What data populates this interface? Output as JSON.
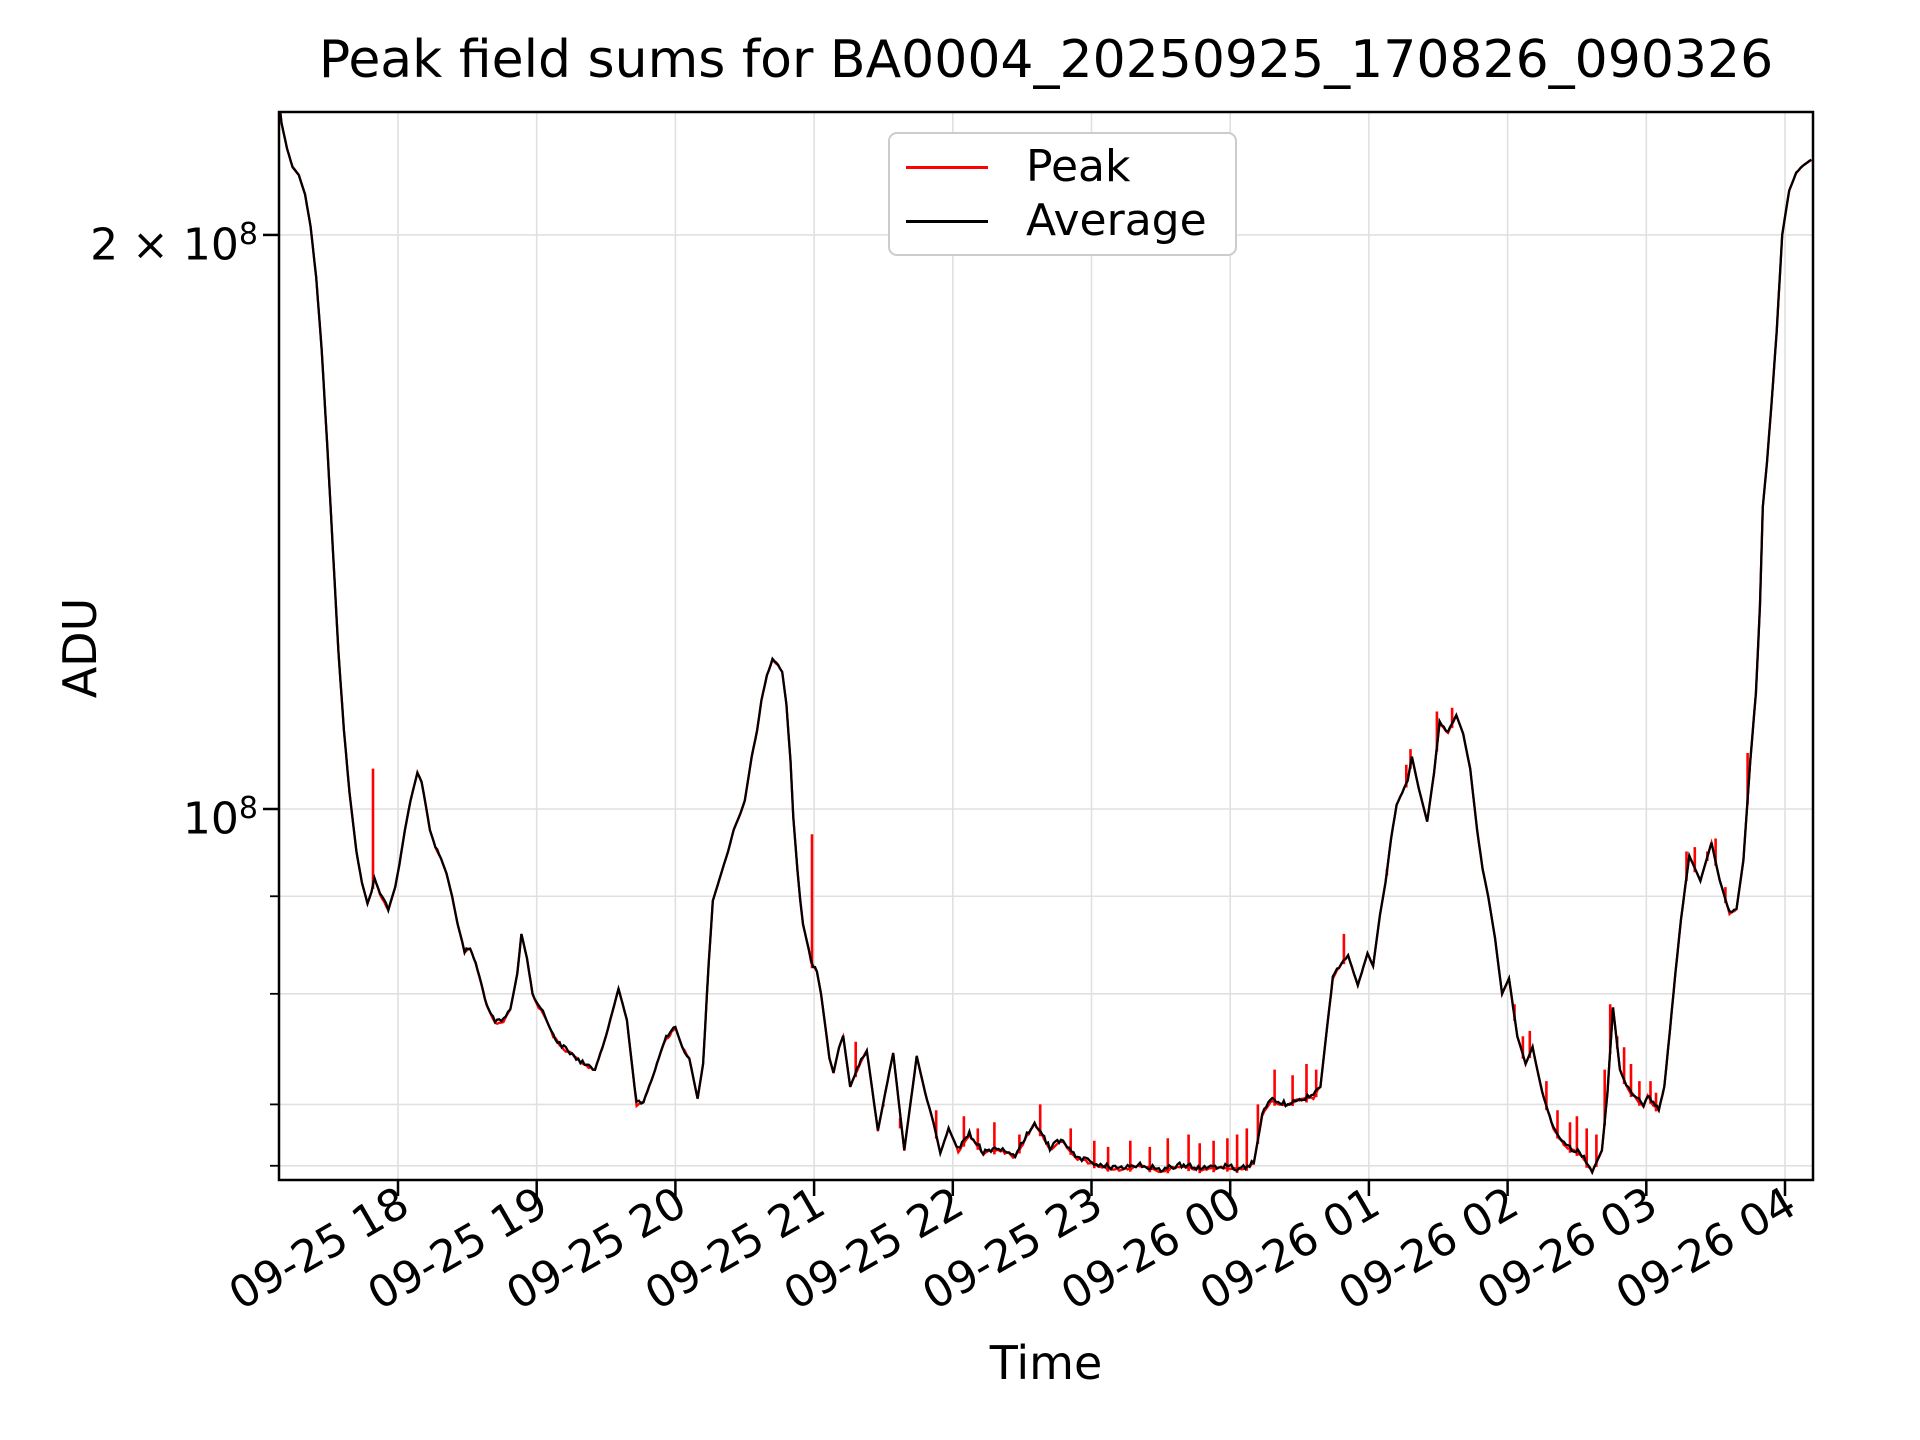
{
  "title": "Peak field sums for BA0004_20250925_170826_090326",
  "axes": {
    "xlabel": "Time",
    "ylabel": "ADU",
    "y_ticks": [
      {
        "mantissa": "2 × 10",
        "exponent": "8",
        "value": 200000000.0
      },
      {
        "mantissa": "10",
        "exponent": "8",
        "value": 100000000.0
      }
    ]
  },
  "legend": {
    "items": [
      {
        "label": "Peak",
        "color": "#ff0000"
      },
      {
        "label": "Average",
        "color": "#000000"
      }
    ]
  },
  "chart_data": {
    "type": "line",
    "title": "Peak field sums for BA0004_20250925_170826_090326",
    "xlabel": "Time",
    "ylabel": "ADU",
    "y_scale": "log",
    "x_unit": "hours after 2025-09-25 17:00",
    "x_range": [
      0.142,
      11.192
    ],
    "y_range": [
      64200000.0,
      233000000.0
    ],
    "grid": true,
    "legend_position": "upper center",
    "x_ticks": [
      {
        "h": 1,
        "label": "09-25 18"
      },
      {
        "h": 2,
        "label": "09-25 19"
      },
      {
        "h": 3,
        "label": "09-25 20"
      },
      {
        "h": 4,
        "label": "09-25 21"
      },
      {
        "h": 5,
        "label": "09-25 22"
      },
      {
        "h": 6,
        "label": "09-25 23"
      },
      {
        "h": 7,
        "label": "09-26 00"
      },
      {
        "h": 8,
        "label": "09-26 01"
      },
      {
        "h": 9,
        "label": "09-26 02"
      },
      {
        "h": 10,
        "label": "09-26 03"
      },
      {
        "h": 11,
        "label": "09-26 04"
      }
    ],
    "y_ticks_major": [
      200000000.0,
      100000000.0
    ],
    "y_ticks_minor": [
      90000000.0,
      80000000.0,
      70000000.0,
      65000000.0
    ],
    "series": [
      {
        "name": "Peak",
        "color": "#ff0000",
        "note": "coincides with Average plus upward spikes",
        "spikes": [
          [
            0.82,
            105000000.0
          ],
          [
            3.985,
            97000000.0
          ],
          [
            4.3,
            75500000.0
          ],
          [
            4.5,
            70000000.0
          ],
          [
            4.62,
            68000000.0
          ],
          [
            4.88,
            69500000.0
          ],
          [
            5.08,
            69000000.0
          ],
          [
            5.18,
            68000000.0
          ],
          [
            5.3,
            68500000.0
          ],
          [
            5.48,
            67500000.0
          ],
          [
            5.63,
            70000000.0
          ],
          [
            5.85,
            68000000.0
          ],
          [
            6.02,
            67000000.0
          ],
          [
            6.12,
            66500000.0
          ],
          [
            6.28,
            67000000.0
          ],
          [
            6.42,
            66500000.0
          ],
          [
            6.55,
            67200000.0
          ],
          [
            6.7,
            67500000.0
          ],
          [
            6.78,
            66800000.0
          ],
          [
            6.88,
            67000000.0
          ],
          [
            6.98,
            67200000.0
          ],
          [
            7.05,
            67500000.0
          ],
          [
            7.12,
            68000000.0
          ],
          [
            7.2,
            70000000.0
          ],
          [
            7.32,
            73000000.0
          ],
          [
            7.45,
            72500000.0
          ],
          [
            7.55,
            73500000.0
          ],
          [
            7.62,
            73000000.0
          ],
          [
            7.82,
            86000000.0
          ],
          [
            8.13,
            93000000.0
          ],
          [
            8.27,
            105500000.0
          ],
          [
            8.3,
            107500000.0
          ],
          [
            8.49,
            112500000.0
          ],
          [
            8.6,
            113000000.0
          ],
          [
            9.05,
            79000000.0
          ],
          [
            9.11,
            76000000.0
          ],
          [
            9.16,
            76500000.0
          ],
          [
            9.28,
            72000000.0
          ],
          [
            9.36,
            69500000.0
          ],
          [
            9.45,
            68500000.0
          ],
          [
            9.5,
            69000000.0
          ],
          [
            9.57,
            68000000.0
          ],
          [
            9.64,
            67500000.0
          ],
          [
            9.7,
            73000000.0
          ],
          [
            9.74,
            79000000.0
          ],
          [
            9.79,
            76000000.0
          ],
          [
            9.84,
            75000000.0
          ],
          [
            9.89,
            73500000.0
          ],
          [
            9.95,
            72000000.0
          ],
          [
            10.03,
            72000000.0
          ],
          [
            10.07,
            71000000.0
          ],
          [
            10.29,
            95000000.0
          ],
          [
            10.35,
            95500000.0
          ],
          [
            10.44,
            95000000.0
          ],
          [
            10.5,
            96500000.0
          ],
          [
            10.57,
            91000000.0
          ],
          [
            10.73,
            107000000.0
          ]
        ]
      },
      {
        "name": "Average",
        "color": "#000000",
        "points": [
          [
            0.142,
            235000000.0
          ],
          [
            0.16,
            229000000.0
          ],
          [
            0.2,
            222000000.0
          ],
          [
            0.24,
            217000000.0
          ],
          [
            0.285,
            215000000.0
          ],
          [
            0.33,
            210000000.0
          ],
          [
            0.37,
            202000000.0
          ],
          [
            0.41,
            190000000.0
          ],
          [
            0.45,
            174000000.0
          ],
          [
            0.49,
            155000000.0
          ],
          [
            0.53,
            137000000.0
          ],
          [
            0.57,
            121000000.0
          ],
          [
            0.61,
            110000000.0
          ],
          [
            0.65,
            102000000.0
          ],
          [
            0.7,
            95000000.0
          ],
          [
            0.74,
            91500000.0
          ],
          [
            0.78,
            89200000.0
          ],
          [
            0.81,
            90500000.0
          ],
          [
            0.83,
            92000000.0
          ],
          [
            0.87,
            90300000.0
          ],
          [
            0.93,
            88500000.0
          ],
          [
            0.98,
            91000000.0
          ],
          [
            1.01,
            93500000.0
          ],
          [
            1.05,
            97500000.0
          ],
          [
            1.09,
            101000000.0
          ],
          [
            1.14,
            104500000.0
          ],
          [
            1.17,
            103300000.0
          ],
          [
            1.2,
            100500000.0
          ],
          [
            1.23,
            97500000.0
          ],
          [
            1.27,
            95500000.0
          ],
          [
            1.31,
            94200000.0
          ],
          [
            1.35,
            92500000.0
          ],
          [
            1.39,
            90000000.0
          ],
          [
            1.43,
            87000000.0
          ],
          [
            1.48,
            84200000.0
          ],
          [
            1.52,
            84500000.0
          ],
          [
            1.56,
            83000000.0
          ],
          [
            1.6,
            81000000.0
          ],
          [
            1.64,
            78800000.0
          ],
          [
            1.7,
            77200000.0
          ],
          [
            1.76,
            77400000.0
          ],
          [
            1.81,
            78500000.0
          ],
          [
            1.86,
            82000000.0
          ],
          [
            1.89,
            86000000.0
          ],
          [
            1.93,
            83500000.0
          ],
          [
            1.97,
            80000000.0
          ],
          [
            2.0,
            79000000.0
          ],
          [
            2.06,
            77800000.0
          ],
          [
            2.12,
            76000000.0
          ],
          [
            2.18,
            75000000.0
          ],
          [
            2.24,
            74500000.0
          ],
          [
            2.33,
            73500000.0
          ],
          [
            2.42,
            73000000.0
          ],
          [
            2.5,
            76000000.0
          ],
          [
            2.59,
            80500000.0
          ],
          [
            2.65,
            77500000.0
          ],
          [
            2.72,
            70000000.0
          ],
          [
            2.77,
            70200000.0
          ],
          [
            2.84,
            72500000.0
          ],
          [
            2.92,
            75500000.0
          ],
          [
            3.0,
            76800000.0
          ],
          [
            3.05,
            75000000.0
          ],
          [
            3.1,
            74000000.0
          ],
          [
            3.16,
            70500000.0
          ],
          [
            3.2,
            73500000.0
          ],
          [
            3.24,
            83000000.0
          ],
          [
            3.27,
            89500000.0
          ],
          [
            3.32,
            92000000.0
          ],
          [
            3.38,
            95000000.0
          ],
          [
            3.42,
            97500000.0
          ],
          [
            3.47,
            99500000.0
          ],
          [
            3.5,
            101000000.0
          ],
          [
            3.55,
            106500000.0
          ],
          [
            3.59,
            110000000.0
          ],
          [
            3.62,
            114000000.0
          ],
          [
            3.66,
            117500000.0
          ],
          [
            3.7,
            119700000.0
          ],
          [
            3.74,
            119000000.0
          ],
          [
            3.77,
            118000000.0
          ],
          [
            3.8,
            113500000.0
          ],
          [
            3.83,
            106000000.0
          ],
          [
            3.85,
            99000000.0
          ],
          [
            3.88,
            92800000.0
          ],
          [
            3.9,
            89600000.0
          ],
          [
            3.92,
            87000000.0
          ],
          [
            3.96,
            84500000.0
          ],
          [
            3.98,
            83000000.0
          ],
          [
            4.02,
            82200000.0
          ],
          [
            4.05,
            80000000.0
          ],
          [
            4.07,
            78000000.0
          ],
          [
            4.09,
            76000000.0
          ],
          [
            4.11,
            74000000.0
          ],
          [
            4.14,
            72700000.0
          ],
          [
            4.18,
            75000000.0
          ],
          [
            4.21,
            76000000.0
          ],
          [
            4.26,
            71500000.0
          ],
          [
            4.31,
            73000000.0
          ],
          [
            4.38,
            74700000.0
          ],
          [
            4.46,
            67800000.0
          ],
          [
            4.57,
            74500000.0
          ],
          [
            4.65,
            66200000.0
          ],
          [
            4.74,
            74200000.0
          ],
          [
            4.8,
            71000000.0
          ],
          [
            4.86,
            68500000.0
          ],
          [
            4.91,
            66000000.0
          ],
          [
            4.97,
            68000000.0
          ],
          [
            5.04,
            66200000.0
          ],
          [
            5.12,
            67500000.0
          ],
          [
            5.22,
            66000000.0
          ],
          [
            5.33,
            66300000.0
          ],
          [
            5.45,
            65700000.0
          ],
          [
            5.59,
            68500000.0
          ],
          [
            5.7,
            66300000.0
          ],
          [
            5.78,
            67000000.0
          ],
          [
            5.9,
            65600000.0
          ],
          [
            6.05,
            65000000.0
          ],
          [
            6.2,
            64700000.0
          ],
          [
            6.35,
            65000000.0
          ],
          [
            6.5,
            64600000.0
          ],
          [
            6.65,
            65000000.0
          ],
          [
            6.8,
            64700000.0
          ],
          [
            6.95,
            64900000.0
          ],
          [
            7.08,
            64700000.0
          ],
          [
            7.17,
            65200000.0
          ],
          [
            7.23,
            69000000.0
          ],
          [
            7.29,
            70300000.0
          ],
          [
            7.4,
            70000000.0
          ],
          [
            7.5,
            70400000.0
          ],
          [
            7.6,
            70600000.0
          ],
          [
            7.65,
            71500000.0
          ],
          [
            7.7,
            77000000.0
          ],
          [
            7.74,
            81500000.0
          ],
          [
            7.8,
            83000000.0
          ],
          [
            7.85,
            83800000.0
          ],
          [
            7.92,
            80800000.0
          ],
          [
            7.99,
            84000000.0
          ],
          [
            8.03,
            82700000.0
          ],
          [
            8.08,
            88000000.0
          ],
          [
            8.12,
            91500000.0
          ],
          [
            8.16,
            96500000.0
          ],
          [
            8.2,
            100500000.0
          ],
          [
            8.24,
            102000000.0
          ],
          [
            8.28,
            103500000.0
          ],
          [
            8.31,
            106500000.0
          ],
          [
            8.36,
            102500000.0
          ],
          [
            8.42,
            98500000.0
          ],
          [
            8.47,
            104500000.0
          ],
          [
            8.51,
            111000000.0
          ],
          [
            8.57,
            109600000.0
          ],
          [
            8.63,
            112000000.0
          ],
          [
            8.68,
            109500000.0
          ],
          [
            8.73,
            105000000.0
          ],
          [
            8.78,
            97500000.0
          ],
          [
            8.82,
            93000000.0
          ],
          [
            8.86,
            90000000.0
          ],
          [
            8.91,
            85500000.0
          ],
          [
            8.96,
            80000000.0
          ],
          [
            9.01,
            81500000.0
          ],
          [
            9.07,
            76000000.0
          ],
          [
            9.13,
            73500000.0
          ],
          [
            9.18,
            75000000.0
          ],
          [
            9.25,
            71000000.0
          ],
          [
            9.33,
            68000000.0
          ],
          [
            9.42,
            66500000.0
          ],
          [
            9.52,
            66000000.0
          ],
          [
            9.61,
            64500000.0
          ],
          [
            9.68,
            66200000.0
          ],
          [
            9.72,
            71000000.0
          ],
          [
            9.76,
            78700000.0
          ],
          [
            9.81,
            73000000.0
          ],
          [
            9.87,
            71200000.0
          ],
          [
            9.93,
            70500000.0
          ],
          [
            9.98,
            69800000.0
          ],
          [
            10.01,
            70800000.0
          ],
          [
            10.05,
            70000000.0
          ],
          [
            10.09,
            69500000.0
          ],
          [
            10.13,
            71500000.0
          ],
          [
            10.17,
            76500000.0
          ],
          [
            10.21,
            82000000.0
          ],
          [
            10.25,
            87500000.0
          ],
          [
            10.31,
            94500000.0
          ],
          [
            10.39,
            91700000.0
          ],
          [
            10.47,
            96000000.0
          ],
          [
            10.53,
            91700000.0
          ],
          [
            10.6,
            88200000.0
          ],
          [
            10.65,
            88600000.0
          ],
          [
            10.7,
            94000000.0
          ],
          [
            10.75,
            106000000.0
          ],
          [
            10.79,
            115000000.0
          ],
          [
            10.82,
            128000000.0
          ],
          [
            10.84,
            144000000.0
          ],
          [
            10.87,
            152000000.0
          ],
          [
            10.9,
            162000000.0
          ],
          [
            10.94,
            178000000.0
          ],
          [
            10.98,
            200000000.0
          ],
          [
            11.03,
            211000000.0
          ],
          [
            11.08,
            215500000.0
          ],
          [
            11.13,
            217500000.0
          ],
          [
            11.19,
            219000000.0
          ]
        ]
      }
    ],
    "colors": {
      "grid": "#e0e0e0",
      "spine": "#000000",
      "peak": "#ff0000",
      "average": "#000000"
    }
  }
}
